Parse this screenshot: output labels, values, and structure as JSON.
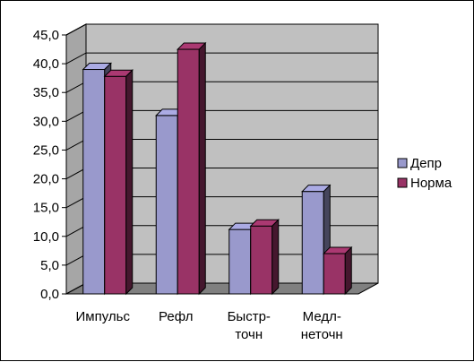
{
  "chart_data": {
    "type": "bar",
    "categories": [
      [
        "Импульс"
      ],
      [
        "Рефл"
      ],
      [
        "Быстр-",
        "точн"
      ],
      [
        "Медл-",
        "неточн"
      ]
    ],
    "series": [
      {
        "name": "Депр",
        "values": [
          39.0,
          31.0,
          11.2,
          17.8
        ],
        "color": "#9999CC"
      },
      {
        "name": "Норма",
        "values": [
          37.8,
          42.5,
          11.8,
          7.0
        ],
        "color": "#993366"
      }
    ],
    "ylim": [
      0,
      45
    ],
    "yticks": [
      "0,0",
      "5,0",
      "10,0",
      "15,0",
      "20,0",
      "25,0",
      "30,0",
      "35,0",
      "40,0",
      "45,0"
    ],
    "grid": true,
    "legend_position": "right",
    "wall_color": "#C0C0C0",
    "floor_color": "#808080"
  }
}
